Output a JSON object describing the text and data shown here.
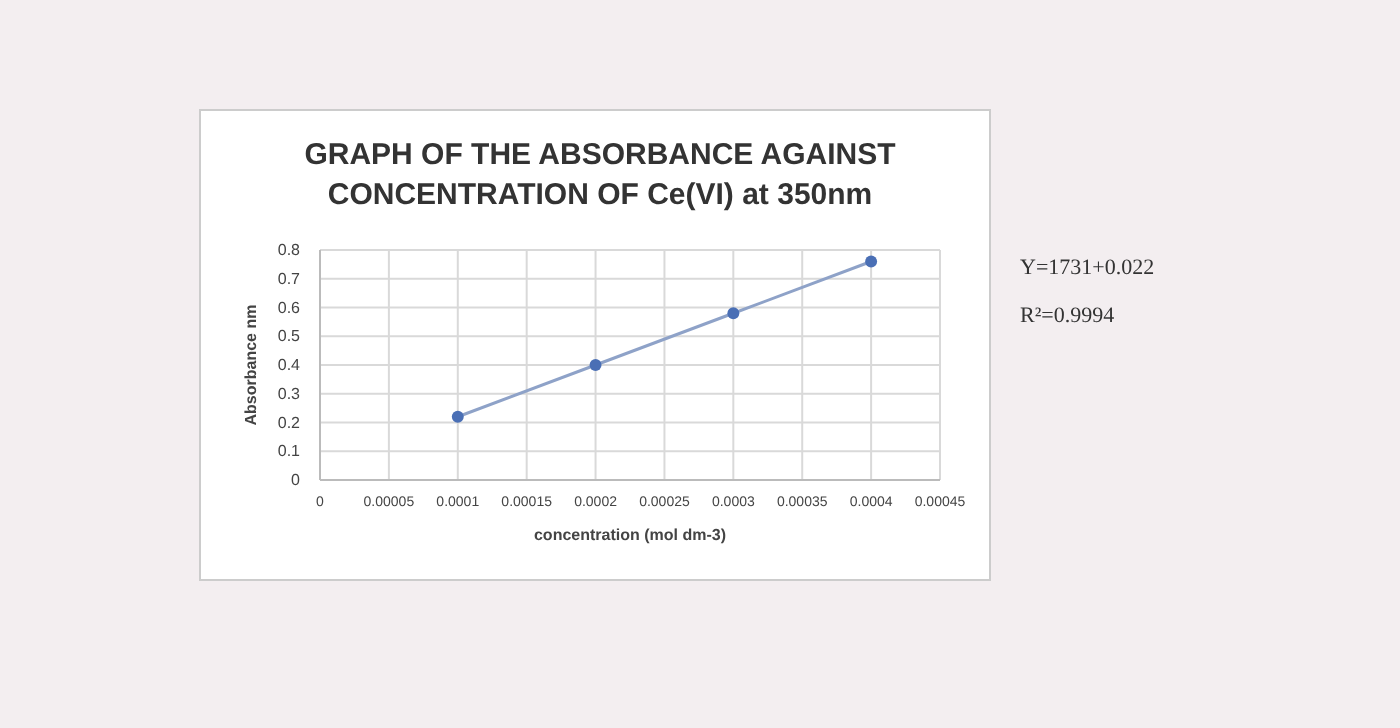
{
  "chart_data": {
    "type": "line",
    "title": "GRAPH OF THE ABSORBANCE AGAINST CONCENTRATION OF Ce(VI) at 350nm",
    "xlabel": "concentration (mol dm-3)",
    "ylabel": "Absorbance nm",
    "x": [
      0.0001,
      0.0002,
      0.0003,
      0.0004
    ],
    "series": [
      {
        "color": "#4a6fb5",
        "values": [
          0.22,
          0.4,
          0.58,
          0.76
        ]
      }
    ],
    "xlim": [
      0,
      0.00045
    ],
    "xticks": [
      0,
      {
        "value": 5e-05,
        "label": "0.00005"
      },
      {
        "value": 0.0001,
        "label": "0.0001"
      },
      {
        "value": 0.00015,
        "label": "0.00015"
      },
      {
        "value": 0.0002,
        "label": "0.0002"
      },
      {
        "value": 0.00025,
        "label": "0.00025"
      },
      {
        "value": 0.0003,
        "label": "0.0003"
      },
      {
        "value": 0.00035,
        "label": "0.00035"
      },
      {
        "value": 0.0004,
        "label": "0.0004"
      },
      {
        "value": 0.00045,
        "label": "0.00045"
      }
    ],
    "ylim": [
      0,
      0.8
    ],
    "yticks": [
      0,
      0.1,
      0.2,
      0.3,
      0.4,
      0.5,
      0.6,
      0.7,
      0.8
    ],
    "grid": true,
    "marker": "circle",
    "line_style": "solid",
    "annotations": [
      "Y=1731+0.022",
      "R²=0.9994"
    ]
  }
}
